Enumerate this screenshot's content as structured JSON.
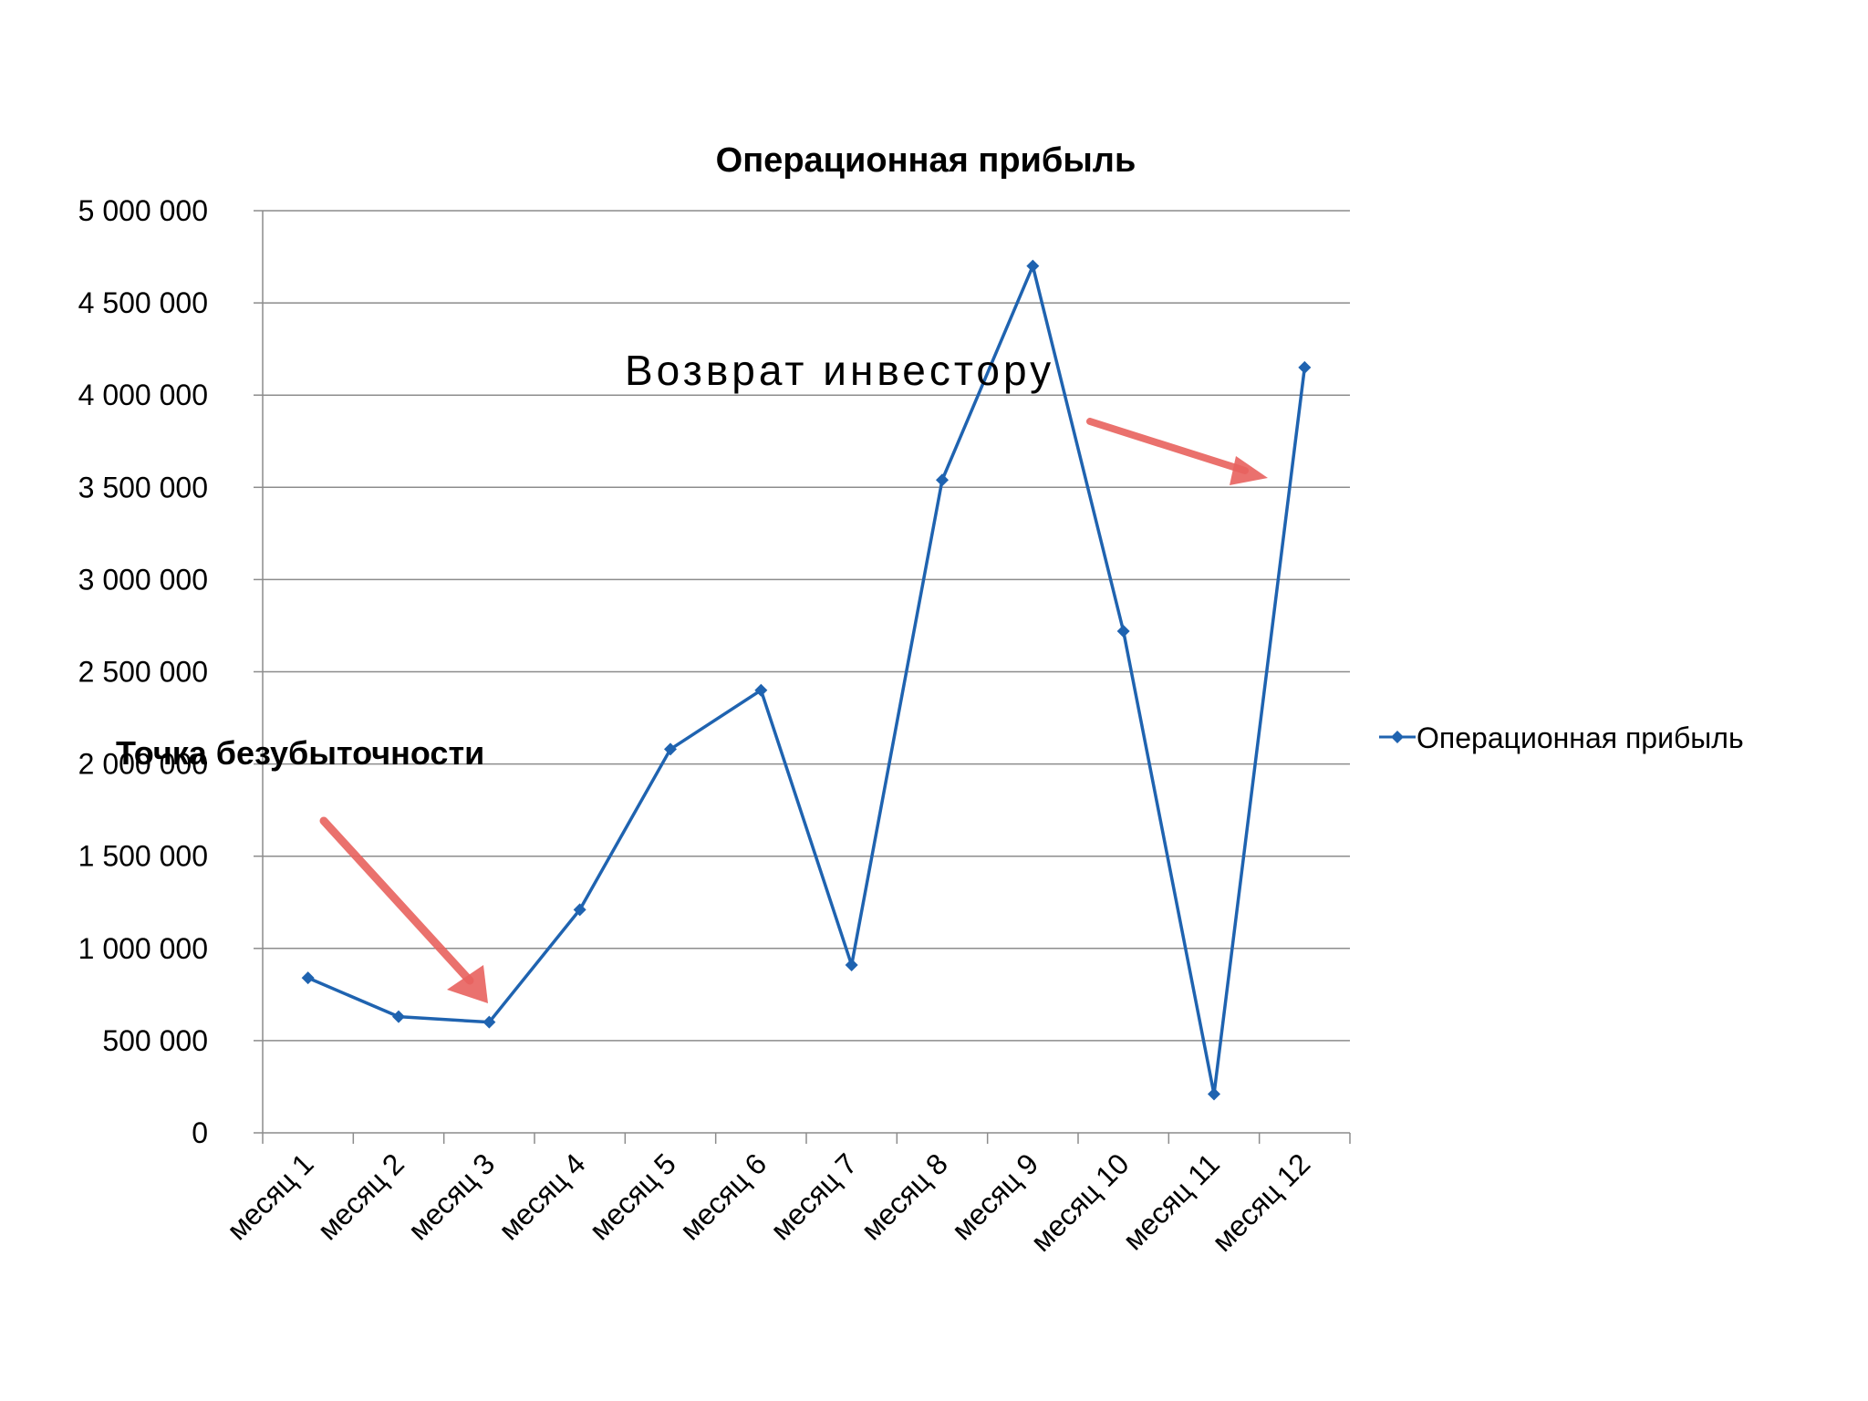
{
  "chart_data": {
    "type": "line",
    "title": "Операционная прибыль",
    "categories": [
      "месяц 1",
      "месяц 2",
      "месяц 3",
      "месяц 4",
      "месяц 5",
      "месяц 6",
      "месяц 7",
      "месяц 8",
      "месяц 9",
      "месяц 10",
      "месяц 11",
      "месяц 12"
    ],
    "series": [
      {
        "name": "Операционная прибыль",
        "values": [
          840000,
          630000,
          600000,
          1210000,
          2080000,
          2400000,
          910000,
          3540000,
          4700000,
          2720000,
          210000,
          4150000
        ]
      }
    ],
    "ylim": [
      0,
      5000000
    ],
    "yticks": [
      0,
      500000,
      1000000,
      1500000,
      2000000,
      2500000,
      3000000,
      3500000,
      4000000,
      4500000,
      5000000
    ],
    "ytick_labels": [
      "0",
      "500 000",
      "1 000 000",
      "1 500 000",
      "2 000 000",
      "2 500 000",
      "3 000 000",
      "3 500 000",
      "4 000 000",
      "4 500 000",
      "5 000 000"
    ],
    "grid": true,
    "legend_position": "right",
    "annotations": [
      "Возврат  инвестору",
      "Точка безубыточности"
    ]
  },
  "colors": {
    "series": "#1f63b0",
    "grid": "#8c8c8c",
    "axis": "#8c8c8c",
    "arrow": "#e8625e"
  }
}
